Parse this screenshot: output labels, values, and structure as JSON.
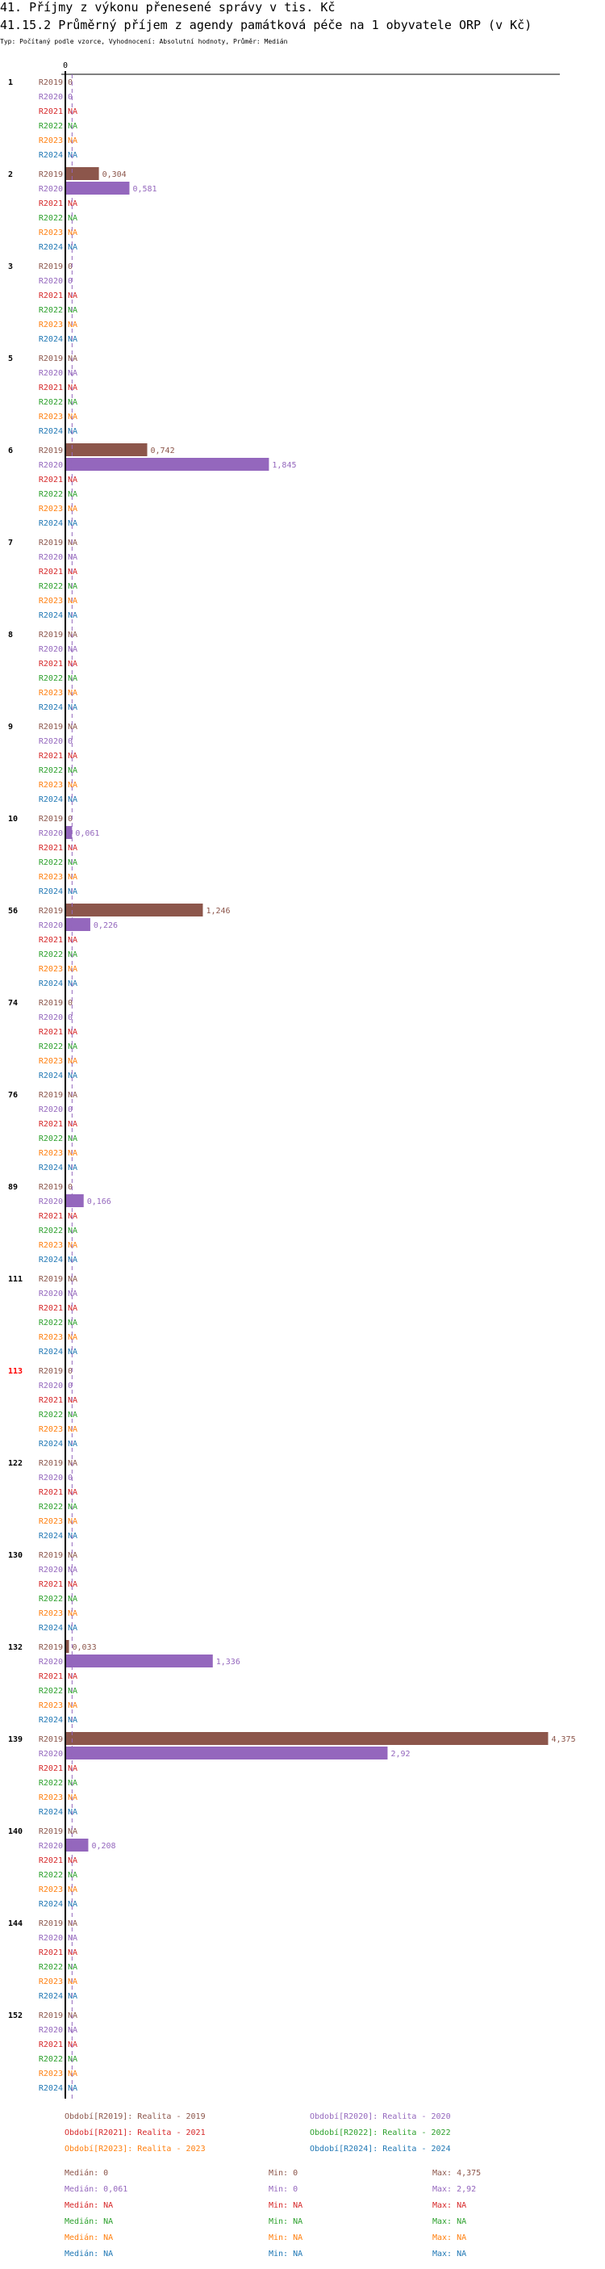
{
  "header": {
    "title": "41. Příjmy z výkonu přenesené správy v tis. Kč",
    "subtitle": "41.15.2 Průměrný příjem z agendy památková péče na 1 obyvatele ORP (v Kč)",
    "info": "Typ: Počítaný podle vzorce, Vyhodnocení: Absolutní hodnoty, Průměr: Medián"
  },
  "chart_data": {
    "type": "bar",
    "orientation": "horizontal",
    "axis_tick_labels": [
      "0"
    ],
    "xlim": [
      0,
      4.375
    ],
    "series_keys": [
      "R2019",
      "R2020",
      "R2021",
      "R2022",
      "R2023",
      "R2024"
    ],
    "colors": {
      "R2019": "#8c564b",
      "R2020": "#9467bd",
      "R2021": "#d62728",
      "R2022": "#2ca02c",
      "R2023": "#ff7f0e",
      "R2024": "#1f77b4"
    },
    "highlight_color": "#ff0000",
    "median_line_series": "R2020",
    "categories": [
      {
        "label": "1",
        "values": [
          0,
          0,
          null,
          null,
          null,
          null
        ]
      },
      {
        "label": "2",
        "values": [
          0.304,
          0.581,
          null,
          null,
          null,
          null
        ]
      },
      {
        "label": "3",
        "values": [
          0,
          0,
          null,
          null,
          null,
          null
        ]
      },
      {
        "label": "5",
        "values": [
          null,
          null,
          null,
          null,
          null,
          null
        ]
      },
      {
        "label": "6",
        "values": [
          0.742,
          1.845,
          null,
          null,
          null,
          null
        ]
      },
      {
        "label": "7",
        "values": [
          null,
          null,
          null,
          null,
          null,
          null
        ]
      },
      {
        "label": "8",
        "values": [
          null,
          null,
          null,
          null,
          null,
          null
        ]
      },
      {
        "label": "9",
        "values": [
          null,
          0,
          null,
          null,
          null,
          null
        ]
      },
      {
        "label": "10",
        "values": [
          0,
          0.061,
          null,
          null,
          null,
          null
        ]
      },
      {
        "label": "56",
        "values": [
          1.246,
          0.226,
          null,
          null,
          null,
          null
        ]
      },
      {
        "label": "74",
        "values": [
          0,
          0,
          null,
          null,
          null,
          null
        ]
      },
      {
        "label": "76",
        "values": [
          null,
          0,
          null,
          null,
          null,
          null
        ]
      },
      {
        "label": "89",
        "values": [
          0,
          0.166,
          null,
          null,
          null,
          null
        ]
      },
      {
        "label": "111",
        "values": [
          null,
          null,
          null,
          null,
          null,
          null
        ]
      },
      {
        "label": "113",
        "values": [
          0,
          0,
          null,
          null,
          null,
          null
        ],
        "highlight": true
      },
      {
        "label": "122",
        "values": [
          null,
          0,
          null,
          null,
          null,
          null
        ]
      },
      {
        "label": "130",
        "values": [
          null,
          null,
          null,
          null,
          null,
          null
        ]
      },
      {
        "label": "132",
        "values": [
          0.033,
          1.336,
          null,
          null,
          null,
          null
        ]
      },
      {
        "label": "139",
        "values": [
          4.375,
          2.92,
          null,
          null,
          null,
          null
        ]
      },
      {
        "label": "140",
        "values": [
          null,
          0.208,
          null,
          null,
          null,
          null
        ]
      },
      {
        "label": "144",
        "values": [
          null,
          null,
          null,
          null,
          null,
          null
        ]
      },
      {
        "label": "152",
        "values": [
          null,
          null,
          null,
          null,
          null,
          null
        ]
      }
    ],
    "na_label": "NA",
    "legend": [
      "Období[R2019]: Realita - 2019",
      "Období[R2020]: Realita - 2020",
      "Období[R2021]: Realita - 2021",
      "Období[R2022]: Realita - 2022",
      "Období[R2023]: Realita - 2023",
      "Období[R2024]: Realita - 2024"
    ],
    "stats": [
      {
        "median": "Medián: 0",
        "min": "Min: 0",
        "max": "Max: 4,375"
      },
      {
        "median": "Medián: 0,061",
        "min": "Min: 0",
        "max": "Max: 2,92"
      },
      {
        "median": "Medián: NA",
        "min": "Min: NA",
        "max": "Max: NA"
      },
      {
        "median": "Medián: NA",
        "min": "Min: NA",
        "max": "Max: NA"
      },
      {
        "median": "Medián: NA",
        "min": "Min: NA",
        "max": "Max: NA"
      },
      {
        "median": "Medián: NA",
        "min": "Min: NA",
        "max": "Max: NA"
      }
    ],
    "medians": [
      0,
      0.061,
      null,
      null,
      null,
      null
    ]
  }
}
